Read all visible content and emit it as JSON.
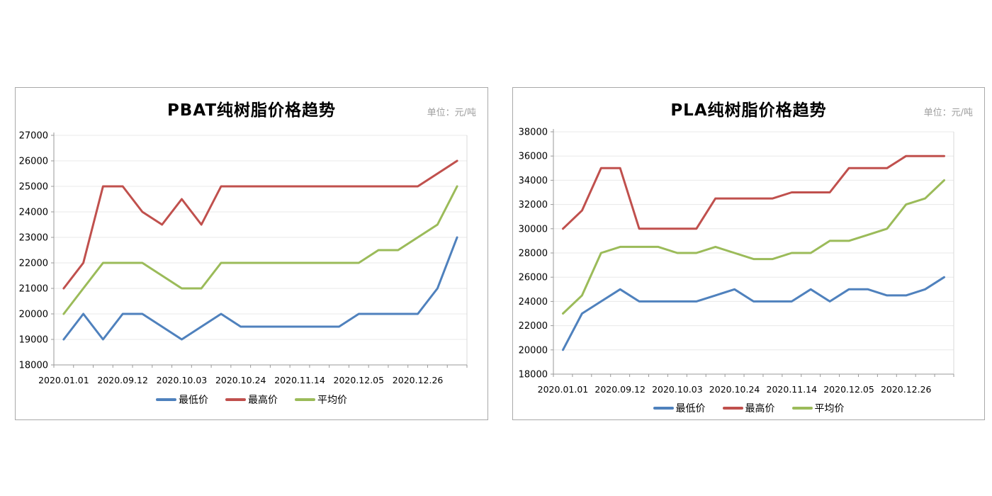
{
  "unit_note": "元/吨",
  "chart_data": [
    {
      "type": "line",
      "title": "PBAT纯树脂价格趋势",
      "unit_label": "单位：元/吨",
      "x_tick_labels": [
        "2020.01.01",
        "2020.09.12",
        "2020.10.03",
        "2020.10.24",
        "2020.11.14",
        "2020.12.05",
        "2020.12.26"
      ],
      "x_label_indices": [
        0,
        3,
        6,
        9,
        12,
        15,
        18
      ],
      "n_points": 21,
      "ylim": [
        18000,
        27000
      ],
      "ytick_step": 1000,
      "grid": "horizontal",
      "legend_position": "bottom",
      "series": [
        {
          "name": "最低价",
          "color": "#4F81BD",
          "values": [
            19000,
            20000,
            19000,
            20000,
            20000,
            19500,
            19000,
            19500,
            20000,
            19500,
            19500,
            19500,
            19500,
            19500,
            19500,
            20000,
            20000,
            20000,
            20000,
            21000,
            23000
          ]
        },
        {
          "name": "最高价",
          "color": "#C0504D",
          "values": [
            21000,
            22000,
            25000,
            25000,
            24000,
            23500,
            24500,
            23500,
            25000,
            25000,
            25000,
            25000,
            25000,
            25000,
            25000,
            25000,
            25000,
            25000,
            25000,
            25500,
            26000
          ]
        },
        {
          "name": "平均价",
          "color": "#9BBB59",
          "values": [
            20000,
            21000,
            22000,
            22000,
            22000,
            21500,
            21000,
            21000,
            22000,
            22000,
            22000,
            22000,
            22000,
            22000,
            22000,
            22000,
            22500,
            22500,
            23000,
            23500,
            25000
          ]
        }
      ]
    },
    {
      "type": "line",
      "title": "PLA纯树脂价格趋势",
      "unit_label": "单位：元/吨",
      "x_tick_labels": [
        "2020.01.01",
        "2020.09.12",
        "2020.10.03",
        "2020.10.24",
        "2020.11.14",
        "2020.12.05",
        "2020.12.26"
      ],
      "x_label_indices": [
        0,
        3,
        6,
        9,
        12,
        15,
        18
      ],
      "n_points": 21,
      "ylim": [
        18000,
        38000
      ],
      "ytick_step": 2000,
      "grid": "horizontal",
      "legend_position": "bottom",
      "series": [
        {
          "name": "最低价",
          "color": "#4F81BD",
          "values": [
            20000,
            23000,
            24000,
            25000,
            24000,
            24000,
            24000,
            24000,
            24500,
            25000,
            24000,
            24000,
            24000,
            25000,
            24000,
            25000,
            25000,
            24500,
            24500,
            25000,
            26000
          ]
        },
        {
          "name": "最高价",
          "color": "#C0504D",
          "values": [
            30000,
            31500,
            35000,
            35000,
            30000,
            30000,
            30000,
            30000,
            32500,
            32500,
            32500,
            32500,
            33000,
            33000,
            33000,
            35000,
            35000,
            35000,
            36000,
            36000,
            36000
          ]
        },
        {
          "name": "平均价",
          "color": "#9BBB59",
          "values": [
            23000,
            24500,
            28000,
            28500,
            28500,
            28500,
            28000,
            28000,
            28500,
            28000,
            27500,
            27500,
            28000,
            28000,
            29000,
            29000,
            29500,
            30000,
            32000,
            32500,
            34000
          ]
        }
      ]
    }
  ]
}
